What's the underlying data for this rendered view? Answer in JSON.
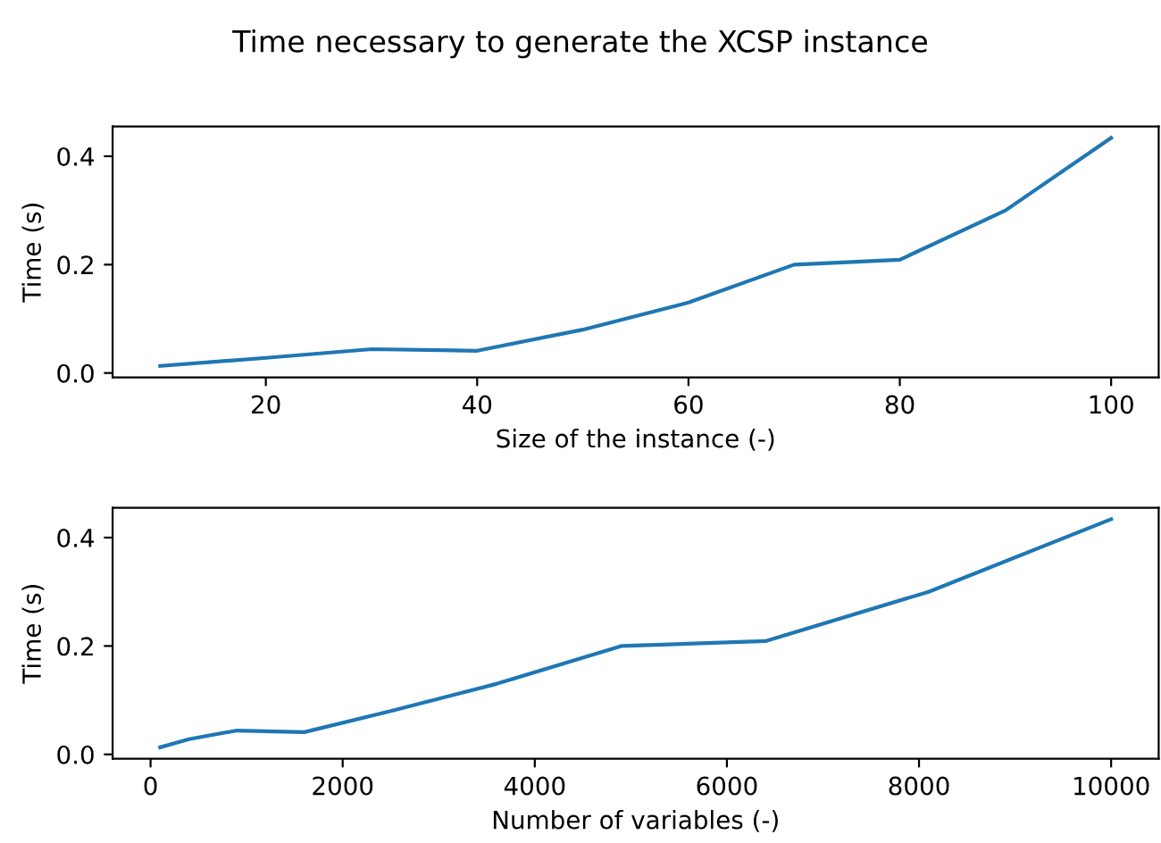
{
  "chart_data": [
    {
      "type": "line",
      "title": "Time necessary to generate the XCSP instance",
      "xlabel": "Size of the instance (-)",
      "ylabel": "Time (s)",
      "x": [
        10,
        20,
        30,
        40,
        50,
        60,
        70,
        80,
        90,
        100
      ],
      "series": [
        {
          "color": "#1f77b4",
          "values": [
            0.013,
            0.028,
            0.044,
            0.041,
            0.08,
            0.13,
            0.2,
            0.209,
            0.3,
            0.434
          ]
        }
      ],
      "xlim": [
        5.5,
        104.5
      ],
      "xticks": [
        20,
        40,
        60,
        80,
        100
      ],
      "ylim": [
        -0.008,
        0.455
      ],
      "yticks": [
        {
          "value": 0,
          "label": "0.0"
        },
        {
          "value": 0.2,
          "label": "0.2"
        },
        {
          "value": 0.4,
          "label": "0.4"
        }
      ],
      "grid": false,
      "legend": false
    },
    {
      "type": "line",
      "xlabel": "Number of variables (-)",
      "ylabel": "Time (s)",
      "x": [
        100,
        400,
        900,
        1600,
        2500,
        3600,
        4900,
        6400,
        8100,
        10000
      ],
      "series": [
        {
          "color": "#1f77b4",
          "values": [
            0.013,
            0.028,
            0.044,
            0.041,
            0.08,
            0.13,
            0.2,
            0.209,
            0.3,
            0.434
          ]
        }
      ],
      "xlim": [
        -395,
        10495
      ],
      "xticks": [
        0,
        2000,
        4000,
        6000,
        8000,
        10000
      ],
      "ylim": [
        -0.008,
        0.455
      ],
      "yticks": [
        {
          "value": 0,
          "label": "0.0"
        },
        {
          "value": 0.2,
          "label": "0.2"
        },
        {
          "value": 0.4,
          "label": "0.4"
        }
      ],
      "grid": false,
      "legend": false
    }
  ]
}
